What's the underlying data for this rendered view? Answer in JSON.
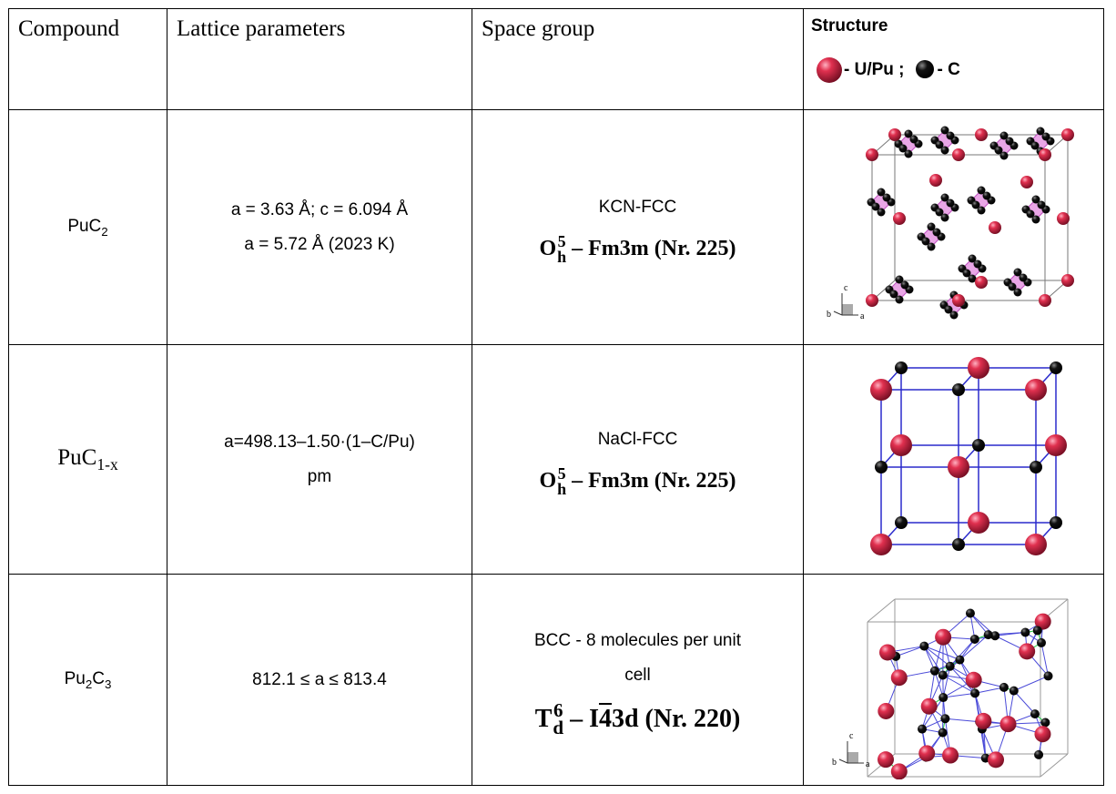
{
  "table": {
    "header": [
      "Compound",
      "Lattice parameters",
      "Space group",
      "Structure"
    ],
    "legend": [
      "- U/Pu ;",
      "- C"
    ],
    "rows": [
      {
        "compound": [
          {
            "text": "PuC"
          },
          {
            "sub": "2"
          }
        ],
        "lattice": [
          "a = 3.63 Å; c = 6.094 Å",
          "a = 5.72 Å (2023 K)"
        ],
        "space_group": {
          "name": [
            "KCN-FCC"
          ],
          "symbol": "O",
          "sup": "5",
          "sub": "h",
          "rest": [
            {
              "text": " – Fm3m (Nr. 225)"
            }
          ]
        },
        "structure_axes": [
          "c",
          "b",
          "a"
        ]
      },
      {
        "compound": [
          {
            "text": "PuC"
          },
          {
            "sub": "1-x"
          }
        ],
        "lattice": [
          "a=498.13–1.50·(1–C/Pu)",
          "pm"
        ],
        "space_group": {
          "name": [
            "NaCl-FCC"
          ],
          "symbol": "O",
          "sup": "5",
          "sub": "h",
          "rest": [
            {
              "text": " – Fm3m (Nr. 225)"
            }
          ]
        }
      },
      {
        "compound": [
          {
            "text": "Pu"
          },
          {
            "sub": "2"
          },
          {
            "text": "C"
          },
          {
            "sub": "3"
          }
        ],
        "lattice": [
          "812.1 ≤ a ≤ 813.4"
        ],
        "space_group": {
          "name": [
            "BCC - 8 molecules per unit",
            "cell"
          ],
          "symbol": "T",
          "sup": "6",
          "sub": "d",
          "rest": [
            {
              "text": " – I"
            },
            {
              "overline": "4"
            },
            {
              "text": "3d (Nr. 220)"
            }
          ]
        },
        "structure_axes": [
          "c",
          "b",
          "a"
        ]
      }
    ]
  }
}
